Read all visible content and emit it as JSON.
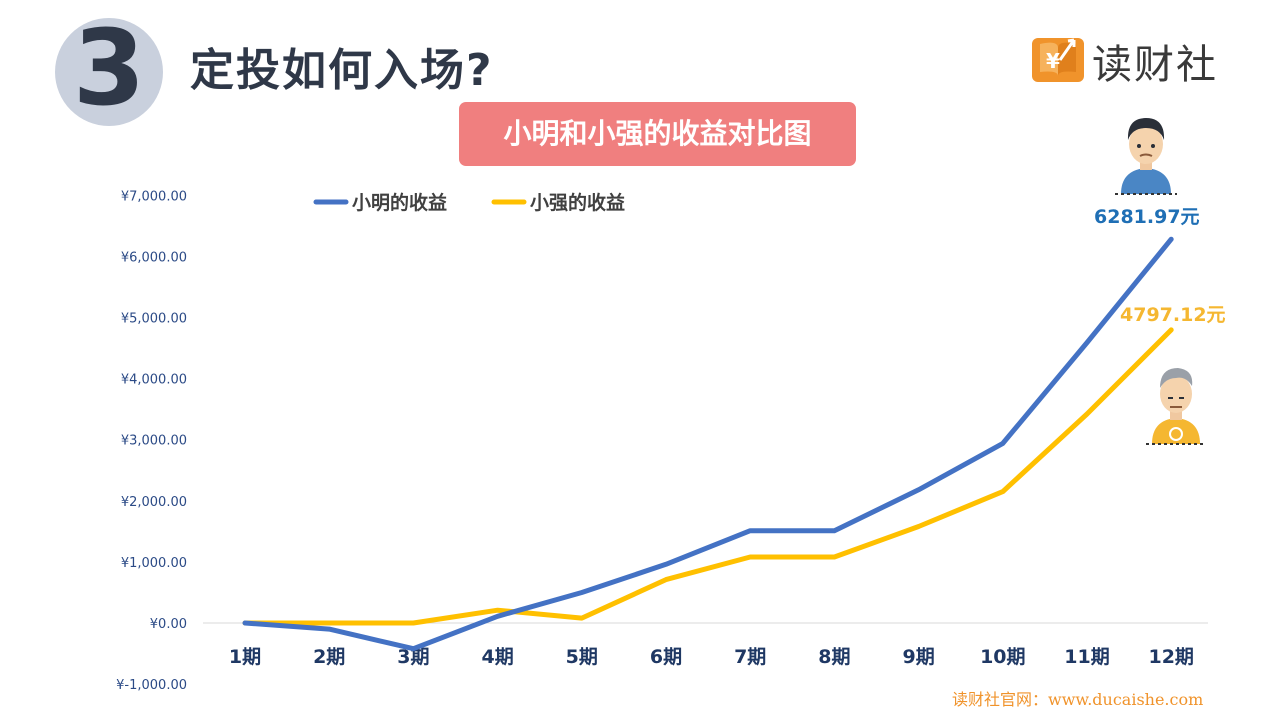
{
  "header": {
    "number": "3",
    "title": "定投如何入场?"
  },
  "logo": {
    "text": "读财社",
    "icon": "book-yuan-arrow-icon",
    "color": "#f0932b"
  },
  "chart_title": "小明和小强的收益对比图",
  "end_labels": {
    "xiaoming": "6281.97元",
    "xiaoqiang": "4797.12元"
  },
  "avatars": {
    "xiaoming": "young-man-avatar-icon",
    "xiaoqiang": "older-man-avatar-icon"
  },
  "watermark": "读财社官网：www.ducaishe.com",
  "colors": {
    "xiaoming": "#4472c4",
    "xiaoqiang": "#ffc000",
    "title_bg": "#f07f7f",
    "axis_text": "#1f3864",
    "tick_text": "#2b4a86"
  },
  "chart_data": {
    "type": "line",
    "title": "小明和小强的收益对比图",
    "categories": [
      "1期",
      "2期",
      "3期",
      "4期",
      "5期",
      "6期",
      "7期",
      "8期",
      "9期",
      "10期",
      "11期",
      "12期"
    ],
    "series": [
      {
        "name": "小明的收益",
        "values": [
          0,
          -100,
          -420,
          110,
          500,
          960,
          1510,
          1510,
          2180,
          2940,
          4590,
          6281.97
        ]
      },
      {
        "name": "小强的收益",
        "values": [
          0,
          0,
          0,
          210,
          80,
          710,
          1080,
          1080,
          1580,
          2150,
          3420,
          4797.12
        ]
      }
    ],
    "y_ticks": [
      "¥-1,000.00",
      "¥0.00",
      "¥1,000.00",
      "¥2,000.00",
      "¥3,000.00",
      "¥4,000.00",
      "¥5,000.00",
      "¥6,000.00",
      "¥7,000.00"
    ],
    "ylim": [
      -1000,
      7000
    ],
    "grid": false,
    "legend_position": "top-left"
  }
}
